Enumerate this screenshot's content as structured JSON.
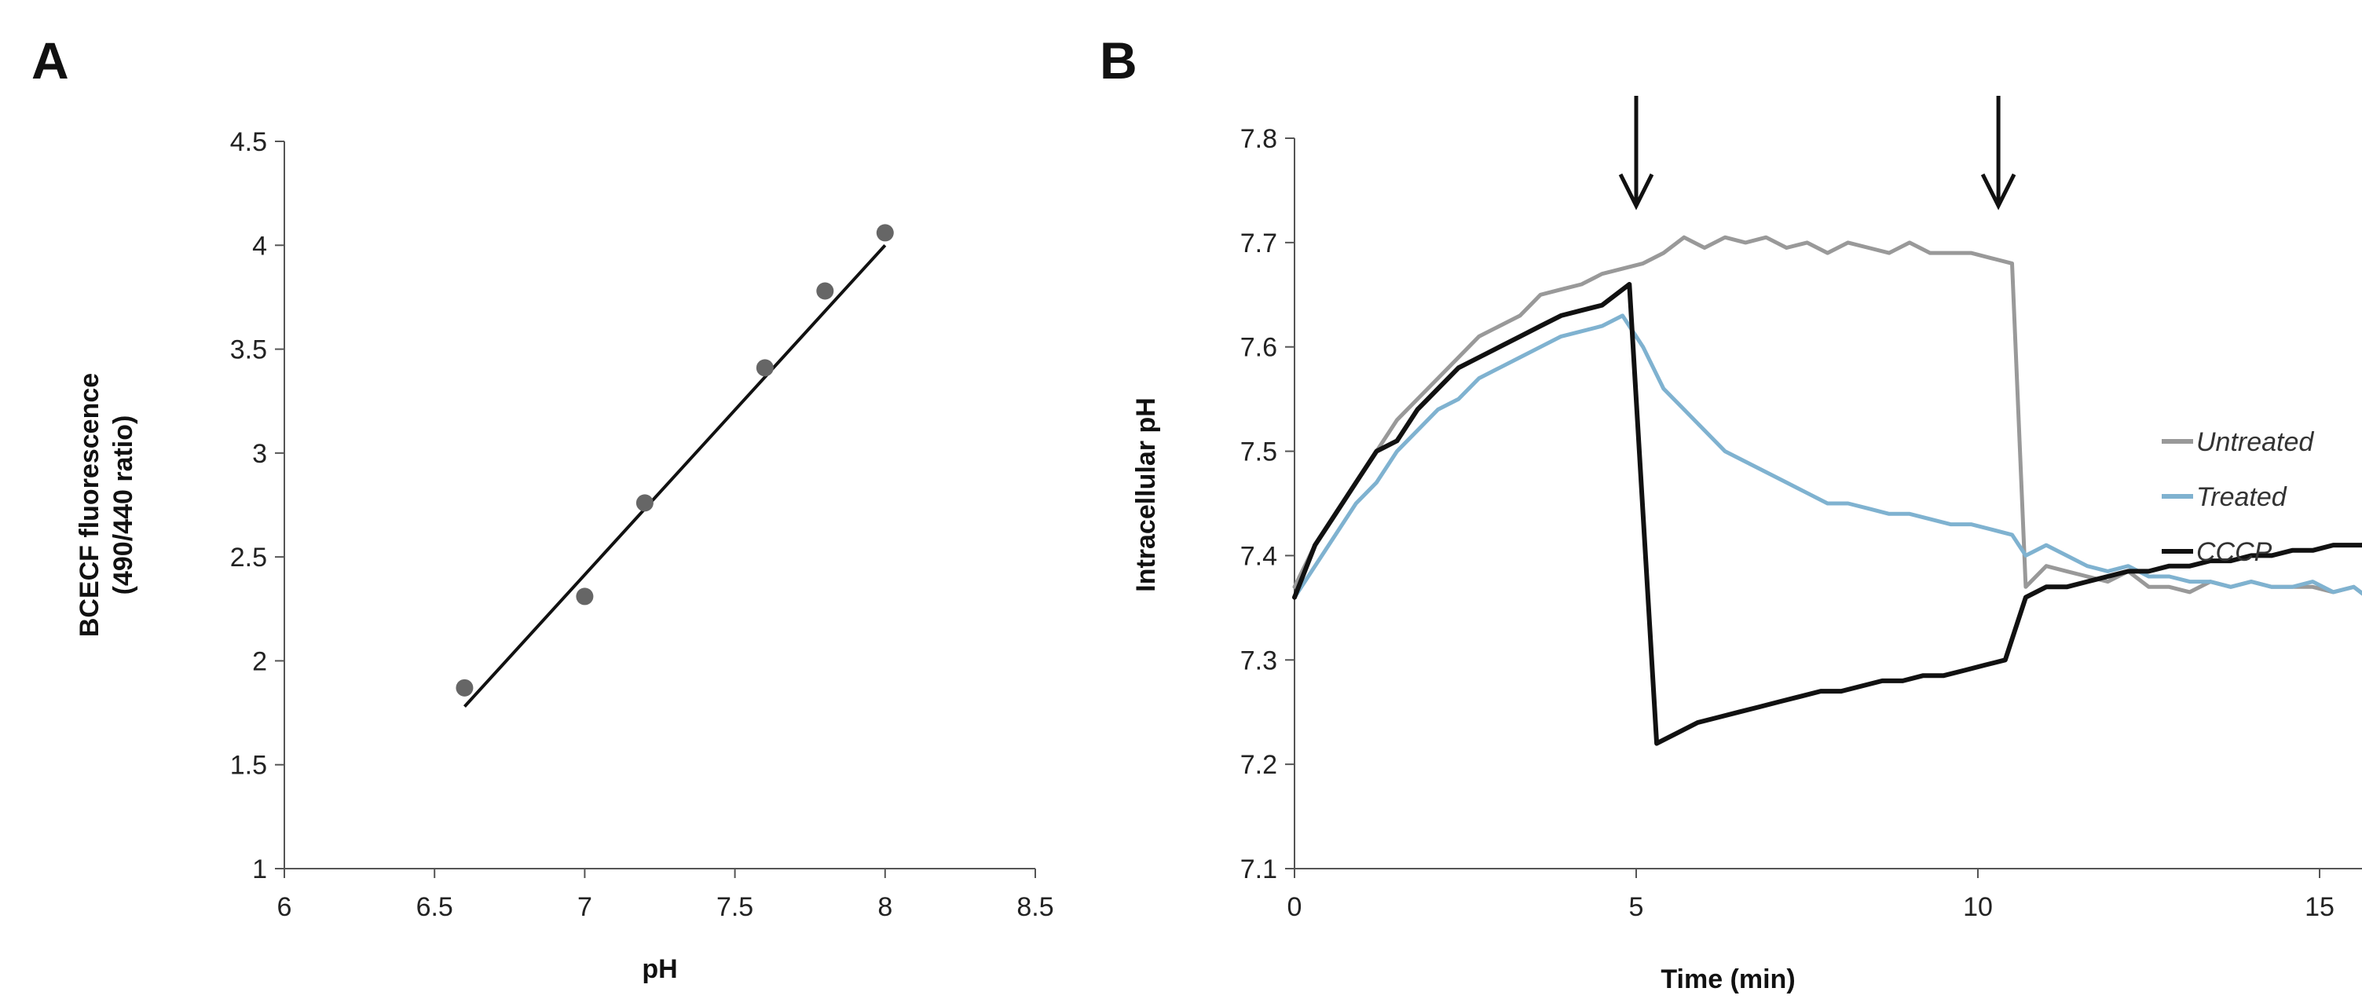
{
  "chart_data": [
    {
      "panel": "A",
      "type": "scatter",
      "title": "",
      "xlabel": "pH",
      "ylabel_lines": [
        "BCECF fluorescence",
        "(490/440 ratio)"
      ],
      "xlim": [
        6,
        8.5
      ],
      "ylim": [
        1,
        4.5
      ],
      "xticks": [
        "6",
        "6.5",
        "7",
        "7.5",
        "8",
        "8.5"
      ],
      "yticks": [
        "1",
        "1.5",
        "2",
        "2.5",
        "3",
        "3.5",
        "4",
        "4.5"
      ],
      "grid": false,
      "points": [
        {
          "x": 6.6,
          "y": 1.87
        },
        {
          "x": 7.0,
          "y": 2.31
        },
        {
          "x": 7.2,
          "y": 2.76
        },
        {
          "x": 7.6,
          "y": 3.41
        },
        {
          "x": 7.8,
          "y": 3.78
        },
        {
          "x": 8.0,
          "y": 4.06
        }
      ],
      "trendline": {
        "x": [
          6.6,
          8.0
        ],
        "y": [
          1.78,
          4.0
        ]
      },
      "colors": {
        "points": "#666666",
        "line": "#111111"
      }
    },
    {
      "panel": "B",
      "type": "line",
      "title": "",
      "xlabel": "Time (min)",
      "ylabel": "Intracellular pH",
      "xlim": [
        0,
        16
      ],
      "ylim": [
        7.1,
        7.8
      ],
      "xticks": [
        "0",
        "5",
        "10",
        "15"
      ],
      "yticks": [
        "7.1",
        "7.2",
        "7.3",
        "7.4",
        "7.5",
        "7.6",
        "7.7",
        "7.8"
      ],
      "grid": false,
      "legend_position": "right",
      "annotations": [
        {
          "type": "arrow-down",
          "x": 5.0
        },
        {
          "type": "arrow-down",
          "x": 10.3
        }
      ],
      "series": [
        {
          "name": "Untreated",
          "color": "#999999",
          "x": [
            0,
            0.3,
            0.6,
            0.9,
            1.2,
            1.5,
            1.8,
            2.1,
            2.4,
            2.7,
            3.0,
            3.3,
            3.6,
            3.9,
            4.2,
            4.5,
            4.8,
            5.1,
            5.4,
            5.7,
            6.0,
            6.3,
            6.6,
            6.9,
            7.2,
            7.5,
            7.8,
            8.1,
            8.4,
            8.7,
            9.0,
            9.3,
            9.6,
            9.9,
            10.2,
            10.5,
            10.7,
            11.0,
            11.3,
            11.6,
            11.9,
            12.2,
            12.5,
            12.8,
            13.1,
            13.4,
            13.7,
            14.0,
            14.3,
            14.6,
            14.9,
            15.2,
            15.5,
            15.7
          ],
          "y": [
            7.37,
            7.41,
            7.44,
            7.47,
            7.5,
            7.53,
            7.55,
            7.57,
            7.59,
            7.61,
            7.62,
            7.63,
            7.65,
            7.655,
            7.66,
            7.67,
            7.675,
            7.68,
            7.69,
            7.705,
            7.695,
            7.705,
            7.7,
            7.705,
            7.695,
            7.7,
            7.69,
            7.7,
            7.695,
            7.69,
            7.7,
            7.69,
            7.69,
            7.69,
            7.685,
            7.68,
            7.37,
            7.39,
            7.385,
            7.38,
            7.375,
            7.385,
            7.37,
            7.37,
            7.365,
            7.375,
            7.37,
            7.375,
            7.37,
            7.37,
            7.37,
            7.365,
            7.37,
            7.36
          ]
        },
        {
          "name": "Treated",
          "color": "#7fb2d0",
          "x": [
            0,
            0.3,
            0.6,
            0.9,
            1.2,
            1.5,
            1.8,
            2.1,
            2.4,
            2.7,
            3.0,
            3.3,
            3.6,
            3.9,
            4.2,
            4.5,
            4.8,
            5.1,
            5.4,
            5.7,
            6.0,
            6.3,
            6.6,
            6.9,
            7.2,
            7.5,
            7.8,
            8.1,
            8.4,
            8.7,
            9.0,
            9.3,
            9.6,
            9.9,
            10.2,
            10.5,
            10.7,
            11.0,
            11.3,
            11.6,
            11.9,
            12.2,
            12.5,
            12.8,
            13.1,
            13.4,
            13.7,
            14.0,
            14.3,
            14.6,
            14.9,
            15.2,
            15.5,
            15.7
          ],
          "y": [
            7.36,
            7.39,
            7.42,
            7.45,
            7.47,
            7.5,
            7.52,
            7.54,
            7.55,
            7.57,
            7.58,
            7.59,
            7.6,
            7.61,
            7.615,
            7.62,
            7.63,
            7.6,
            7.56,
            7.54,
            7.52,
            7.5,
            7.49,
            7.48,
            7.47,
            7.46,
            7.45,
            7.45,
            7.445,
            7.44,
            7.44,
            7.435,
            7.43,
            7.43,
            7.425,
            7.42,
            7.4,
            7.41,
            7.4,
            7.39,
            7.385,
            7.39,
            7.38,
            7.38,
            7.375,
            7.375,
            7.37,
            7.375,
            7.37,
            7.37,
            7.375,
            7.365,
            7.37,
            7.36
          ]
        },
        {
          "name": "CCCP",
          "color": "#111111",
          "x": [
            0,
            0.3,
            0.6,
            0.9,
            1.2,
            1.5,
            1.8,
            2.1,
            2.4,
            2.7,
            3.0,
            3.3,
            3.6,
            3.9,
            4.2,
            4.5,
            4.9,
            5.3,
            5.6,
            5.9,
            6.2,
            6.5,
            6.8,
            7.1,
            7.4,
            7.7,
            8.0,
            8.3,
            8.6,
            8.9,
            9.2,
            9.5,
            9.8,
            10.1,
            10.4,
            10.7,
            11.0,
            11.3,
            11.6,
            11.9,
            12.2,
            12.5,
            12.8,
            13.1,
            13.4,
            13.7,
            14.0,
            14.3,
            14.6,
            14.9,
            15.2,
            15.5,
            15.7
          ],
          "y": [
            7.36,
            7.41,
            7.44,
            7.47,
            7.5,
            7.51,
            7.54,
            7.56,
            7.58,
            7.59,
            7.6,
            7.61,
            7.62,
            7.63,
            7.635,
            7.64,
            7.66,
            7.22,
            7.23,
            7.24,
            7.245,
            7.25,
            7.255,
            7.26,
            7.265,
            7.27,
            7.27,
            7.275,
            7.28,
            7.28,
            7.285,
            7.285,
            7.29,
            7.295,
            7.3,
            7.36,
            7.37,
            7.37,
            7.375,
            7.38,
            7.385,
            7.385,
            7.39,
            7.39,
            7.395,
            7.395,
            7.4,
            7.4,
            7.405,
            7.405,
            7.41,
            7.41,
            7.41
          ]
        }
      ]
    }
  ]
}
